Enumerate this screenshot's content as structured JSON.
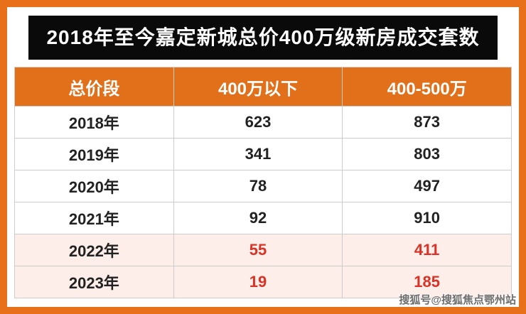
{
  "title": "2018年至今嘉定新城总价400万级新房成交套数",
  "watermark": "搜狐号@搜狐焦点鄂州站",
  "chart_data": {
    "type": "table",
    "title": "2018年至今嘉定新城总价400万级新房成交套数",
    "columns": [
      "总价段",
      "400万以下",
      "400-500万"
    ],
    "rows": [
      {
        "label": "2018年",
        "values": [
          "623",
          "873"
        ],
        "highlight": false
      },
      {
        "label": "2019年",
        "values": [
          "341",
          "803"
        ],
        "highlight": false
      },
      {
        "label": "2020年",
        "values": [
          "78",
          "497"
        ],
        "highlight": false
      },
      {
        "label": "2021年",
        "values": [
          "92",
          "910"
        ],
        "highlight": false
      },
      {
        "label": "2022年",
        "values": [
          "55",
          "411"
        ],
        "highlight": true
      },
      {
        "label": "2023年",
        "values": [
          "19",
          "185"
        ],
        "highlight": true
      }
    ],
    "colors": {
      "frame": "#e8701a",
      "title_bg": "#0a0a0a",
      "title_text": "#ffffff",
      "header_bg": "#e2701b",
      "header_text": "#ffffff",
      "highlight_bg": "#fdeeea",
      "highlight_text": "#d93226"
    }
  }
}
